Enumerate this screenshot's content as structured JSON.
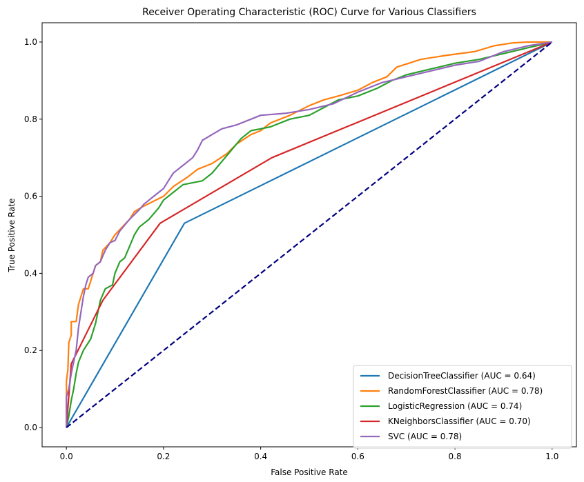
{
  "chart_data": {
    "type": "line",
    "title": "Receiver Operating Characteristic (ROC) Curve for Various Classifiers",
    "xlabel": "False Positive Rate",
    "ylabel": "True Positive Rate",
    "xlim": [
      -0.05,
      1.05
    ],
    "ylim": [
      -0.05,
      1.05
    ],
    "xticks": [
      "0.0",
      "0.2",
      "0.4",
      "0.6",
      "0.8",
      "1.0"
    ],
    "yticks": [
      "0.0",
      "0.2",
      "0.4",
      "0.6",
      "0.8",
      "1.0"
    ],
    "grid": false,
    "legend_position": "lower-right",
    "reference_line": {
      "x": [
        0,
        1
      ],
      "y": [
        0,
        1
      ],
      "color": "#000080",
      "style": "dashed"
    },
    "series": [
      {
        "name": "DecisionTreeClassifier (AUC = 0.64)",
        "color": "#1f77b4",
        "points": [
          [
            0,
            0
          ],
          [
            0.243,
            0.53
          ],
          [
            1,
            1
          ]
        ]
      },
      {
        "name": "RandomForestClassifier (AUC = 0.78)",
        "color": "#ff7f0e",
        "points": [
          [
            0,
            0
          ],
          [
            0,
            0.12
          ],
          [
            0.003,
            0.15
          ],
          [
            0.005,
            0.22
          ],
          [
            0.01,
            0.24
          ],
          [
            0.01,
            0.275
          ],
          [
            0.02,
            0.275
          ],
          [
            0.025,
            0.32
          ],
          [
            0.035,
            0.36
          ],
          [
            0.045,
            0.36
          ],
          [
            0.05,
            0.38
          ],
          [
            0.06,
            0.42
          ],
          [
            0.07,
            0.43
          ],
          [
            0.075,
            0.46
          ],
          [
            0.09,
            0.48
          ],
          [
            0.1,
            0.5
          ],
          [
            0.115,
            0.52
          ],
          [
            0.13,
            0.54
          ],
          [
            0.14,
            0.56
          ],
          [
            0.16,
            0.575
          ],
          [
            0.2,
            0.6
          ],
          [
            0.22,
            0.625
          ],
          [
            0.25,
            0.65
          ],
          [
            0.27,
            0.67
          ],
          [
            0.3,
            0.685
          ],
          [
            0.33,
            0.71
          ],
          [
            0.35,
            0.735
          ],
          [
            0.38,
            0.76
          ],
          [
            0.4,
            0.77
          ],
          [
            0.42,
            0.79
          ],
          [
            0.46,
            0.81
          ],
          [
            0.5,
            0.835
          ],
          [
            0.53,
            0.85
          ],
          [
            0.56,
            0.86
          ],
          [
            0.6,
            0.875
          ],
          [
            0.63,
            0.895
          ],
          [
            0.66,
            0.91
          ],
          [
            0.68,
            0.935
          ],
          [
            0.73,
            0.955
          ],
          [
            0.78,
            0.965
          ],
          [
            0.84,
            0.975
          ],
          [
            0.88,
            0.99
          ],
          [
            0.92,
            0.998
          ],
          [
            0.95,
            1.0
          ],
          [
            1,
            1
          ]
        ]
      },
      {
        "name": "LogisticRegression (AUC = 0.74)",
        "color": "#2ca02c",
        "points": [
          [
            0,
            0
          ],
          [
            0.005,
            0.03
          ],
          [
            0.01,
            0.07
          ],
          [
            0.015,
            0.1
          ],
          [
            0.02,
            0.14
          ],
          [
            0.025,
            0.17
          ],
          [
            0.035,
            0.2
          ],
          [
            0.05,
            0.23
          ],
          [
            0.06,
            0.27
          ],
          [
            0.065,
            0.3
          ],
          [
            0.07,
            0.33
          ],
          [
            0.08,
            0.36
          ],
          [
            0.095,
            0.37
          ],
          [
            0.1,
            0.4
          ],
          [
            0.11,
            0.43
          ],
          [
            0.12,
            0.44
          ],
          [
            0.13,
            0.47
          ],
          [
            0.14,
            0.5
          ],
          [
            0.15,
            0.52
          ],
          [
            0.17,
            0.54
          ],
          [
            0.19,
            0.57
          ],
          [
            0.2,
            0.59
          ],
          [
            0.21,
            0.6
          ],
          [
            0.22,
            0.61
          ],
          [
            0.24,
            0.63
          ],
          [
            0.28,
            0.64
          ],
          [
            0.3,
            0.66
          ],
          [
            0.32,
            0.69
          ],
          [
            0.34,
            0.72
          ],
          [
            0.36,
            0.75
          ],
          [
            0.38,
            0.77
          ],
          [
            0.4,
            0.775
          ],
          [
            0.42,
            0.78
          ],
          [
            0.46,
            0.8
          ],
          [
            0.5,
            0.81
          ],
          [
            0.53,
            0.83
          ],
          [
            0.56,
            0.85
          ],
          [
            0.6,
            0.86
          ],
          [
            0.64,
            0.88
          ],
          [
            0.67,
            0.9
          ],
          [
            0.7,
            0.915
          ],
          [
            0.75,
            0.93
          ],
          [
            0.8,
            0.945
          ],
          [
            0.85,
            0.955
          ],
          [
            0.9,
            0.97
          ],
          [
            0.95,
            0.985
          ],
          [
            1,
            1
          ]
        ]
      },
      {
        "name": "KNeighborsClassifier (AUC = 0.70)",
        "color": "#d62728",
        "points": [
          [
            0,
            0
          ],
          [
            0.01,
            0.165
          ],
          [
            0.075,
            0.33
          ],
          [
            0.193,
            0.53
          ],
          [
            0.423,
            0.7
          ],
          [
            1,
            1
          ]
        ]
      },
      {
        "name": "SVC (AUC = 0.78)",
        "color": "#9467bd",
        "points": [
          [
            0,
            0
          ],
          [
            0,
            0.08
          ],
          [
            0.005,
            0.1
          ],
          [
            0.01,
            0.14
          ],
          [
            0.015,
            0.17
          ],
          [
            0.02,
            0.2
          ],
          [
            0.025,
            0.26
          ],
          [
            0.03,
            0.3
          ],
          [
            0.035,
            0.34
          ],
          [
            0.04,
            0.37
          ],
          [
            0.045,
            0.39
          ],
          [
            0.055,
            0.4
          ],
          [
            0.06,
            0.42
          ],
          [
            0.07,
            0.43
          ],
          [
            0.08,
            0.46
          ],
          [
            0.09,
            0.48
          ],
          [
            0.1,
            0.485
          ],
          [
            0.11,
            0.51
          ],
          [
            0.13,
            0.54
          ],
          [
            0.15,
            0.565
          ],
          [
            0.16,
            0.58
          ],
          [
            0.18,
            0.6
          ],
          [
            0.2,
            0.62
          ],
          [
            0.21,
            0.64
          ],
          [
            0.22,
            0.66
          ],
          [
            0.24,
            0.68
          ],
          [
            0.26,
            0.7
          ],
          [
            0.27,
            0.72
          ],
          [
            0.28,
            0.745
          ],
          [
            0.3,
            0.76
          ],
          [
            0.32,
            0.775
          ],
          [
            0.35,
            0.785
          ],
          [
            0.38,
            0.8
          ],
          [
            0.4,
            0.81
          ],
          [
            0.45,
            0.815
          ],
          [
            0.5,
            0.825
          ],
          [
            0.55,
            0.84
          ],
          [
            0.6,
            0.87
          ],
          [
            0.65,
            0.895
          ],
          [
            0.7,
            0.91
          ],
          [
            0.75,
            0.925
          ],
          [
            0.8,
            0.94
          ],
          [
            0.85,
            0.95
          ],
          [
            0.9,
            0.975
          ],
          [
            0.95,
            0.99
          ],
          [
            1,
            1
          ]
        ]
      }
    ]
  }
}
